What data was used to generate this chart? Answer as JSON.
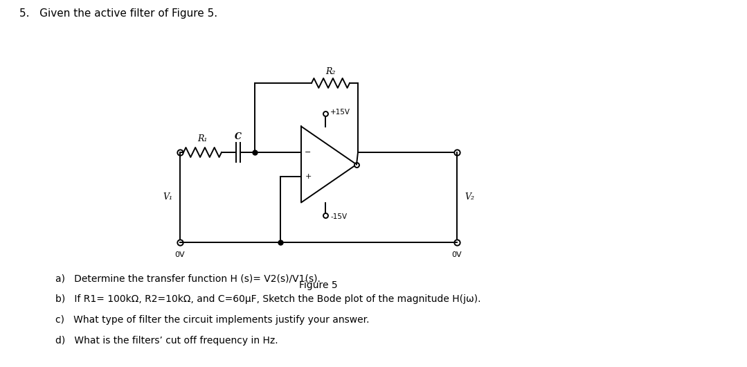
{
  "title_number": "5.",
  "title_text": "Given the active filter of Figure 5.",
  "figure_label": "Figure 5",
  "question_a": "a)   Determine the transfer function H (s)= V2(s)/V1(s).",
  "question_b": "b)   If R1= 100kΩ, R2=10kΩ, and C=60µF, Sketch the Bode plot of the magnitude H(jω).",
  "question_c": "c)   What type of filter the circuit implements justify your answer.",
  "question_d": "d)   What is the filters’ cut off frequency in Hz.",
  "bg_color": "#ffffff",
  "text_color": "#000000",
  "circuit_color": "#000000",
  "label_R1": "R₁",
  "label_C": "C",
  "label_R2": "R₂",
  "label_V1": "V₁",
  "label_V2": "V₂",
  "label_plus15": "+15V",
  "label_minus15": "-15V",
  "label_0V_left": "0V",
  "label_0V_right": "0V"
}
